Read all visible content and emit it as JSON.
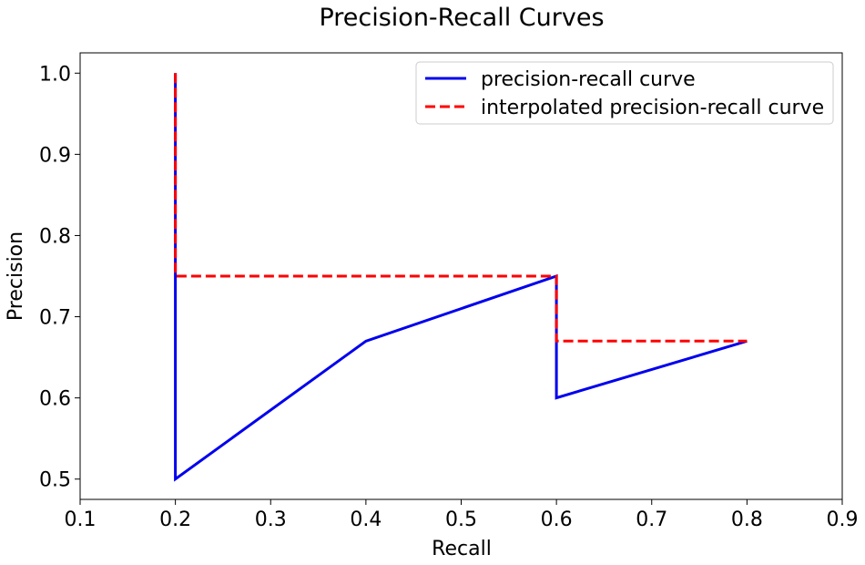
{
  "chart_data": {
    "type": "line",
    "title": "Precision-Recall Curves",
    "xlabel": "Recall",
    "ylabel": "Precision",
    "xlim": [
      0.1,
      0.9
    ],
    "ylim": [
      0.475,
      1.025
    ],
    "xticks": [
      0.1,
      0.2,
      0.3,
      0.4,
      0.5,
      0.6,
      0.7,
      0.8,
      0.9
    ],
    "xtick_labels": [
      "0.1",
      "0.2",
      "0.3",
      "0.4",
      "0.5",
      "0.6",
      "0.7",
      "0.8",
      "0.9"
    ],
    "yticks": [
      0.5,
      0.6,
      0.7,
      0.8,
      0.9,
      1.0
    ],
    "ytick_labels": [
      "0.5",
      "0.6",
      "0.7",
      "0.8",
      "0.9",
      "1.0"
    ],
    "grid": false,
    "legend_position": "top-right",
    "series": [
      {
        "name": "precision-recall curve",
        "color": "#0000ee",
        "style": "solid",
        "x": [
          0.2,
          0.2,
          0.2,
          0.4,
          0.6,
          0.6,
          0.8
        ],
        "y": [
          1.0,
          0.5,
          0.5,
          0.67,
          0.75,
          0.6,
          0.67
        ]
      },
      {
        "name": "interpolated precision-recall curve",
        "color": "#ff0000",
        "style": "dashed",
        "x": [
          0.2,
          0.2,
          0.6,
          0.6,
          0.8
        ],
        "y": [
          1.0,
          0.75,
          0.75,
          0.67,
          0.67
        ]
      }
    ]
  }
}
